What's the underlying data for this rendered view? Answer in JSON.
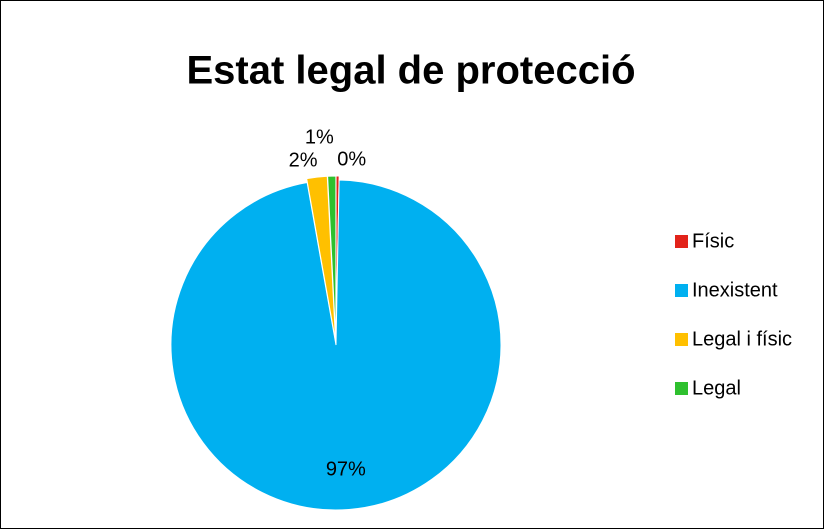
{
  "chart_data": {
    "type": "pie",
    "title": "Estat legal de protecció",
    "categories": [
      "Físic",
      "Inexistent",
      "Legal i físic",
      "Legal"
    ],
    "values": [
      0.3,
      96.9,
      2.0,
      0.8
    ],
    "value_labels": [
      "0%",
      "97%",
      "2%",
      "1%"
    ],
    "colors": [
      "#e2231a",
      "#00b0f0",
      "#ffc000",
      "#2ec02e"
    ],
    "legend": "right"
  }
}
